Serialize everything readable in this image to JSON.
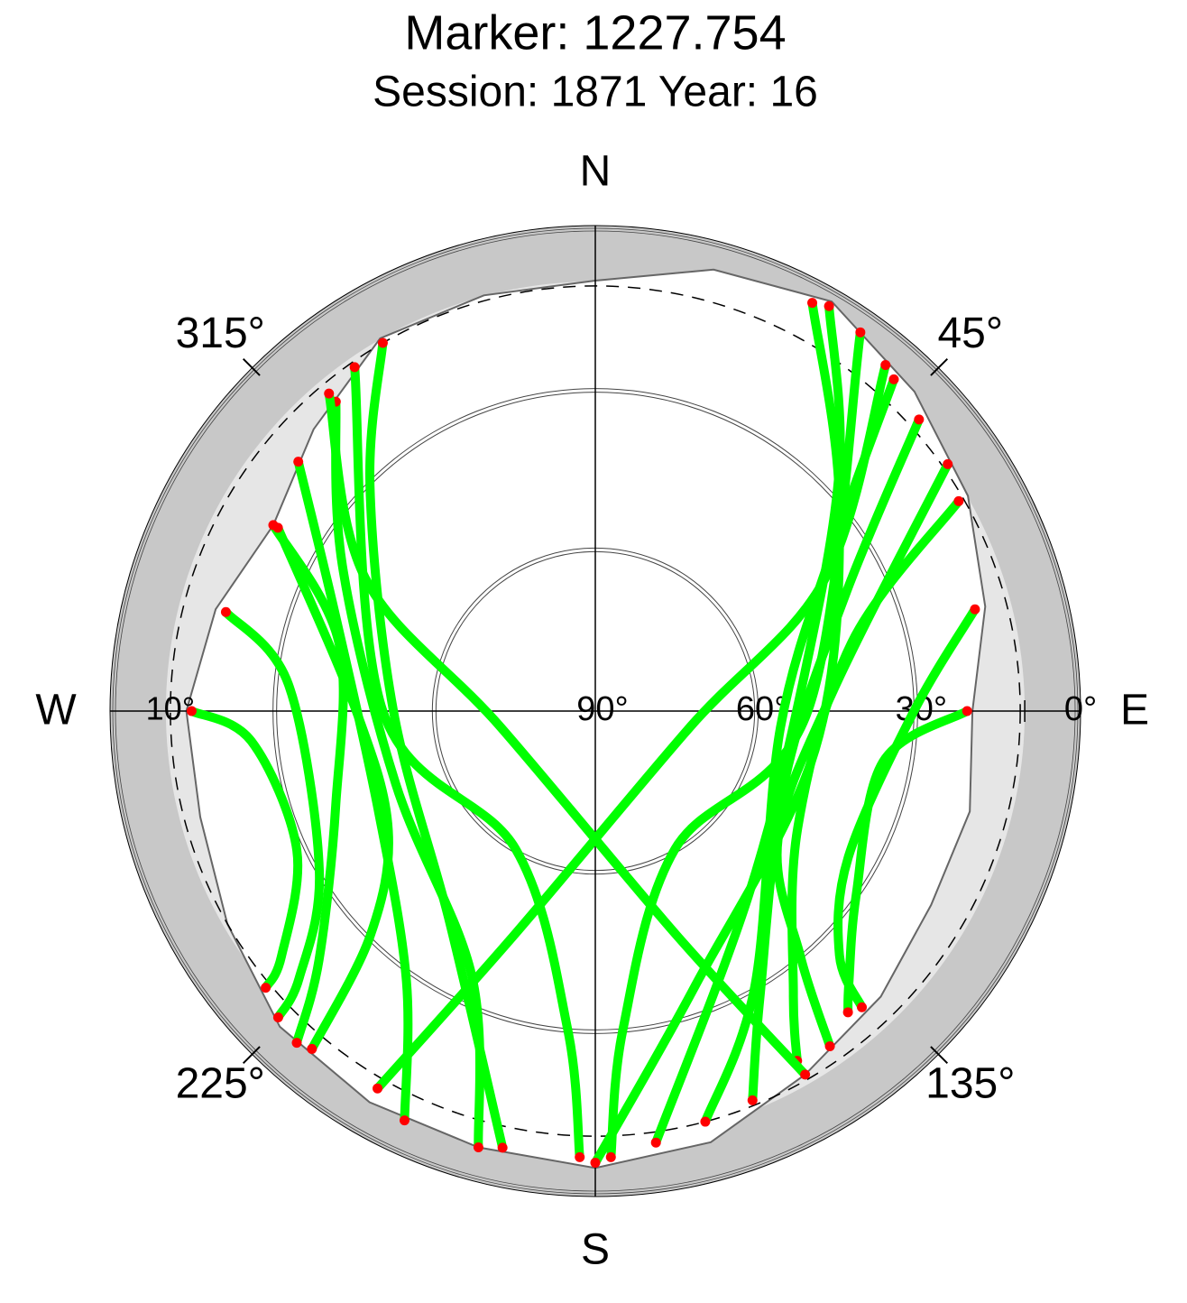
{
  "chart_data": {
    "type": "polar",
    "title": "Marker: 1227.754",
    "subtitle": "Session: 1871 Year: 16",
    "compass": {
      "N": "N",
      "E": "E",
      "S": "S",
      "W": "W"
    },
    "rlim": [
      90,
      0
    ],
    "rticks": [
      {
        "value": 90,
        "label": "90°"
      },
      {
        "value": 60,
        "label": "60°"
      },
      {
        "value": 30,
        "label": "30°"
      },
      {
        "value": 0,
        "label": "0°"
      }
    ],
    "mask_elevation": {
      "value": 10,
      "label": "10°"
    },
    "azimuth_ticks": [
      {
        "value": 45,
        "label": "45°"
      },
      {
        "value": 135,
        "label": "135°"
      },
      {
        "value": 225,
        "label": "225°"
      },
      {
        "value": 315,
        "label": "315°"
      }
    ],
    "horizon": {
      "az": [
        0,
        15,
        30,
        45,
        60,
        75,
        90,
        105,
        120,
        135,
        150,
        165,
        180,
        195,
        210,
        225,
        240,
        255,
        270,
        285,
        300,
        315,
        330,
        345
      ],
      "el": [
        9,
        4,
        1,
        5,
        9,
        14,
        19,
        17,
        17,
        14,
        11,
        6,
        4,
        5,
        5,
        6,
        10,
        13,
        13,
        16,
        20,
        15,
        9,
        9
      ]
    },
    "track_color": "#00ff00",
    "endpoint_color": "#ff0000",
    "series": [
      {
        "az": [
          30,
          45,
          80,
          140,
          172
        ],
        "el": [
          2,
          25,
          50,
          45,
          8
        ]
      },
      {
        "az": [
          28,
          50,
          100,
          160,
          180
        ],
        "el": [
          3,
          30,
          48,
          35,
          5
        ]
      },
      {
        "az": [
          42,
          55,
          95,
          150,
          165
        ],
        "el": [
          6,
          35,
          55,
          30,
          10
        ]
      },
      {
        "az": [
          48,
          65,
          110,
          150,
          158
        ],
        "el": [
          8,
          38,
          52,
          28,
          11
        ]
      },
      {
        "az": [
          60,
          75,
          120,
          145,
          150
        ],
        "el": [
          11,
          40,
          46,
          25,
          14
        ]
      },
      {
        "az": [
          330,
          315,
          270,
          215,
          192
        ],
        "el": [
          10,
          30,
          52,
          42,
          6
        ]
      },
      {
        "az": [
          320,
          300,
          250,
          205,
          195
        ],
        "el": [
          14,
          35,
          50,
          35,
          5
        ]
      },
      {
        "az": [
          310,
          290,
          245,
          215,
          205
        ],
        "el": [
          17,
          38,
          45,
          28,
          5
        ]
      },
      {
        "az": [
          300,
          285,
          250,
          228,
          222
        ],
        "el": [
          20,
          40,
          38,
          20,
          6
        ]
      },
      {
        "az": [
          285,
          275,
          240,
          228,
          226
        ],
        "el": [
          18,
          32,
          30,
          15,
          7
        ]
      },
      {
        "az": [
          75,
          90,
          120,
          135,
          138
        ],
        "el": [
          16,
          30,
          35,
          25,
          15
        ]
      },
      {
        "az": [
          90,
          100,
          125,
          137,
          140
        ],
        "el": [
          20,
          35,
          30,
          20,
          16
        ]
      },
      {
        "az": [
          270,
          265,
          245,
          232,
          230
        ],
        "el": [
          14,
          25,
          28,
          15,
          9
        ]
      },
      {
        "az": [
          40,
          60,
          100,
          200,
          210
        ],
        "el": [
          5,
          40,
          72,
          45,
          8
        ]
      },
      {
        "az": [
          320,
          300,
          260,
          160,
          150
        ],
        "el": [
          12,
          40,
          72,
          45,
          11
        ]
      },
      {
        "az": [
          35,
          90,
          150,
          175,
          178
        ],
        "el": [
          3,
          50,
          60,
          30,
          6
        ]
      },
      {
        "az": [
          325,
          270,
          210,
          185,
          182
        ],
        "el": [
          11,
          50,
          60,
          30,
          6
        ]
      },
      {
        "az": [
          300,
          270,
          240,
          225,
          220
        ],
        "el": [
          21,
          45,
          45,
          30,
          7
        ]
      },
      {
        "az": [
          55,
          85,
          125,
          140,
          145
        ],
        "el": [
          9,
          45,
          48,
          30,
          13
        ]
      }
    ]
  }
}
